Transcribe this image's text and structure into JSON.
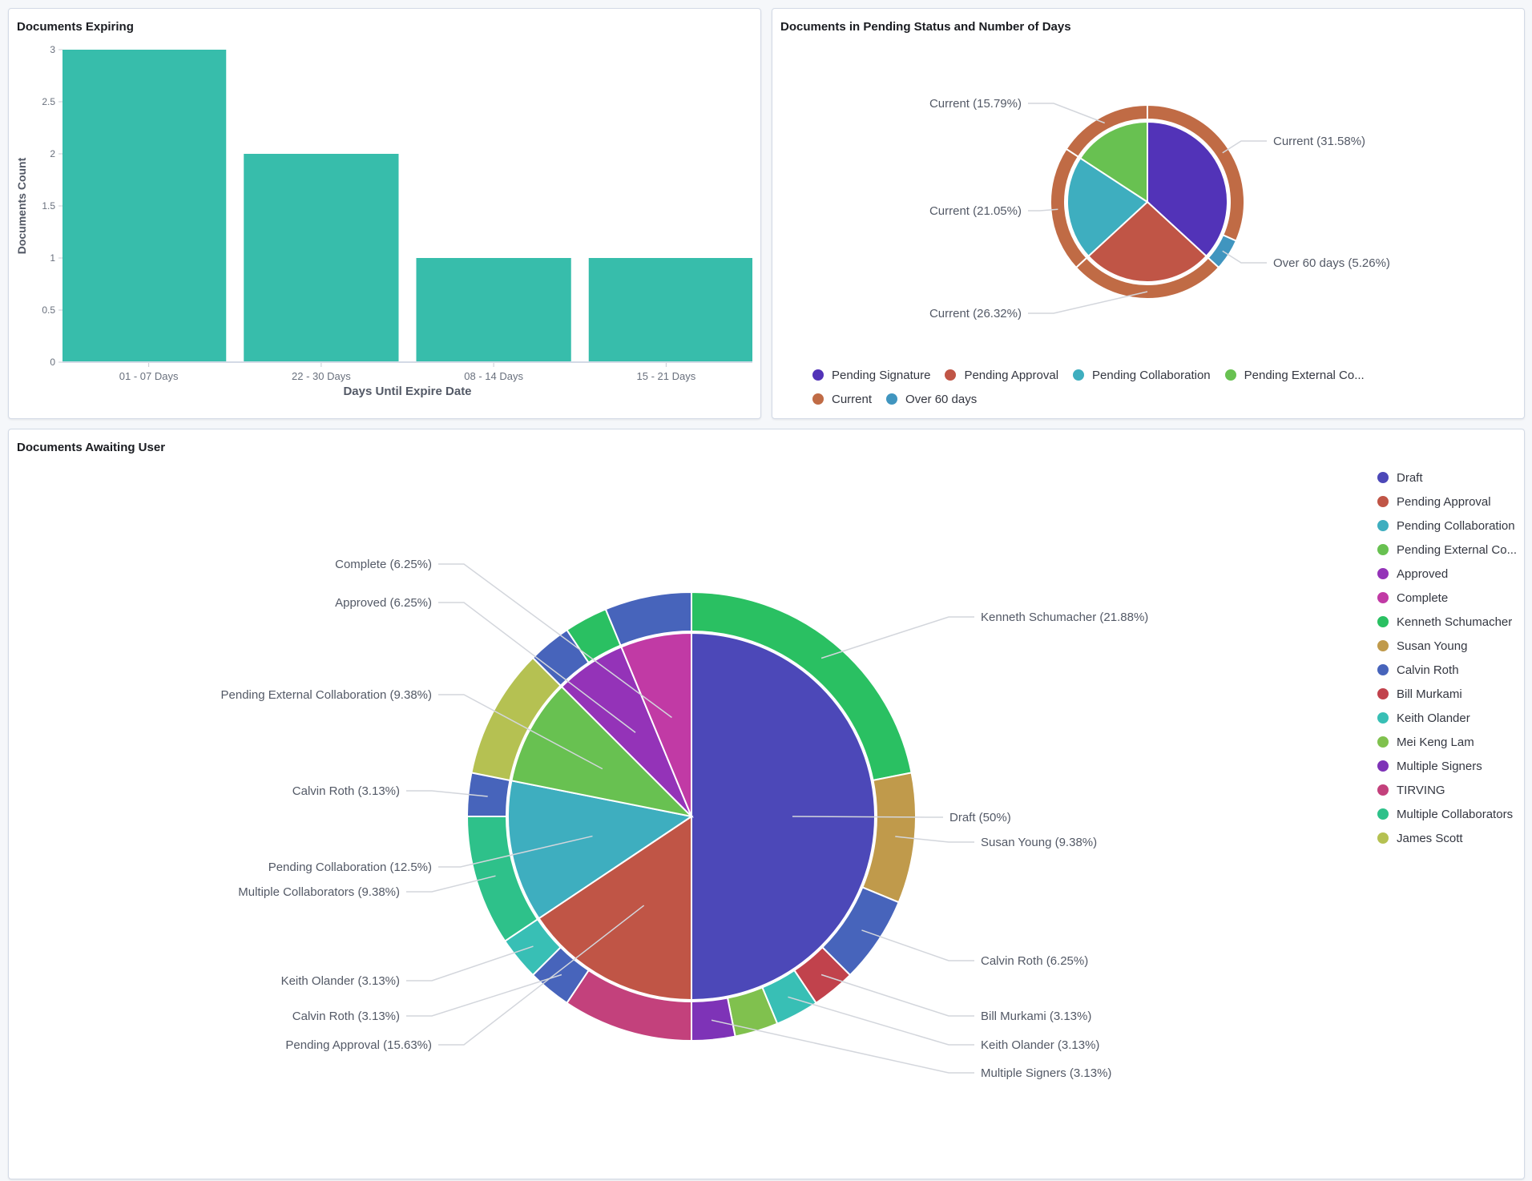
{
  "chart_data": [
    {
      "type": "bar",
      "title": "Documents Expiring",
      "categories": [
        "01 - 07 Days",
        "22 - 30 Days",
        "08 - 14 Days",
        "15 - 21 Days"
      ],
      "values": [
        3,
        2,
        1,
        1
      ],
      "xlabel": "Days Until Expire Date",
      "ylabel": "Documents Count",
      "ylim": [
        0,
        3
      ],
      "yticks": [
        "0",
        "0.5",
        "1",
        "1.5",
        "2",
        "2.5",
        "3"
      ],
      "bar_color": "#37bdab",
      "grid": false
    },
    {
      "type": "pie",
      "title": "Documents in Pending Status and Number of Days",
      "inner": [
        {
          "name": "Pending Signature",
          "value": 7
        },
        {
          "name": "Pending Approval",
          "value": 5
        },
        {
          "name": "Pending Collaboration",
          "value": 4
        },
        {
          "name": "Pending External Collaboration",
          "value": 3
        }
      ],
      "outer": [
        {
          "name": "Current",
          "parent": "Pending Signature",
          "value": 6,
          "label": "Current (31.58%)"
        },
        {
          "name": "Over 60 days",
          "parent": "Pending Signature",
          "value": 1,
          "label": "Over 60 days (5.26%)"
        },
        {
          "name": "Current",
          "parent": "Pending Approval",
          "value": 5,
          "label": "Current (26.32%)"
        },
        {
          "name": "Current",
          "parent": "Pending Collaboration",
          "value": 4,
          "label": "Current (21.05%)"
        },
        {
          "name": "Current",
          "parent": "Pending External Collaboration",
          "value": 3,
          "label": "Current (15.79%)"
        }
      ],
      "legend_position": "bottom",
      "legend": [
        {
          "label": "Pending Signature",
          "color": "#5233b8"
        },
        {
          "label": "Pending Approval",
          "color": "#c05546"
        },
        {
          "label": "Pending Collaboration",
          "color": "#3eaebf"
        },
        {
          "label": "Pending External Co...",
          "color": "#68c151"
        },
        {
          "label": "Current",
          "color": "#c06b45"
        },
        {
          "label": "Over 60 days",
          "color": "#4095bf"
        }
      ]
    },
    {
      "type": "pie",
      "title": "Documents Awaiting User",
      "inner": [
        {
          "name": "Draft",
          "value": 16,
          "label": "Draft (50%)"
        },
        {
          "name": "Pending Approval",
          "value": 5,
          "label": "Pending Approval (15.63%)"
        },
        {
          "name": "Pending Collaboration",
          "value": 4,
          "label": "Pending Collaboration (12.5%)"
        },
        {
          "name": "Pending External Collaboration",
          "value": 3,
          "label": "Pending External Collaboration (9.38%)"
        },
        {
          "name": "Approved",
          "value": 2,
          "label": "Approved (6.25%)"
        },
        {
          "name": "Complete",
          "value": 2,
          "label": "Complete (6.25%)"
        }
      ],
      "outer": [
        {
          "name": "Kenneth Schumacher",
          "parent": "Draft",
          "value": 7,
          "label": "Kenneth Schumacher (21.88%)"
        },
        {
          "name": "Susan Young",
          "parent": "Draft",
          "value": 3,
          "label": "Susan Young (9.38%)"
        },
        {
          "name": "Calvin Roth",
          "parent": "Draft",
          "value": 2,
          "label": "Calvin Roth (6.25%)"
        },
        {
          "name": "Bill Murkami",
          "parent": "Draft",
          "value": 1,
          "label": "Bill Murkami (3.13%)"
        },
        {
          "name": "Keith Olander",
          "parent": "Draft",
          "value": 1,
          "label": "Keith Olander (3.13%)"
        },
        {
          "name": "Mei Keng Lam",
          "parent": "Draft",
          "value": 1
        },
        {
          "name": "Multiple Signers",
          "parent": "Draft",
          "value": 1,
          "label": "Multiple Signers (3.13%)"
        },
        {
          "name": "TIRVING",
          "parent": "Pending Approval",
          "value": 3
        },
        {
          "name": "Calvin Roth",
          "parent": "Pending Approval",
          "value": 1,
          "label": "Calvin Roth (3.13%)"
        },
        {
          "name": "Keith Olander",
          "parent": "Pending Approval",
          "value": 1,
          "label": "Keith Olander (3.13%)"
        },
        {
          "name": "Multiple Collaborators",
          "parent": "Pending Collaboration",
          "value": 3,
          "label": "Multiple Collaborators (9.38%)"
        },
        {
          "name": "Calvin Roth",
          "parent": "Pending Collaboration",
          "value": 1,
          "label": "Calvin Roth (3.13%)"
        },
        {
          "name": "James Scott",
          "parent": "Pending External Collaboration",
          "value": 3
        },
        {
          "name": "Calvin Roth",
          "parent": "Approved",
          "value": 1
        },
        {
          "name": "Kenneth Schumacher",
          "parent": "Approved",
          "value": 1
        },
        {
          "name": "Calvin Roth",
          "parent": "Complete",
          "value": 2
        }
      ],
      "legend_position": "right",
      "legend": [
        {
          "label": "Draft",
          "color": "#4c48b8"
        },
        {
          "label": "Pending Approval",
          "color": "#c05546"
        },
        {
          "label": "Pending Collaboration",
          "color": "#3eaebf"
        },
        {
          "label": "Pending External Co...",
          "color": "#68c151"
        },
        {
          "label": "Approved",
          "color": "#9433b8"
        },
        {
          "label": "Complete",
          "color": "#c13aa5"
        },
        {
          "label": "Kenneth Schumacher",
          "color": "#2ac062"
        },
        {
          "label": "Susan Young",
          "color": "#c09a4b"
        },
        {
          "label": "Calvin Roth",
          "color": "#4764bb"
        },
        {
          "label": "Bill Murkami",
          "color": "#c1424c"
        },
        {
          "label": "Keith Olander",
          "color": "#38bfb5"
        },
        {
          "label": "Mei Keng Lam",
          "color": "#80c14e"
        },
        {
          "label": "Multiple Signers",
          "color": "#7e33b7"
        },
        {
          "label": "TIRVING",
          "color": "#c3417c"
        },
        {
          "label": "Multiple Collaborators",
          "color": "#2ec18a"
        },
        {
          "label": "James Scott",
          "color": "#b5c152"
        }
      ]
    }
  ]
}
